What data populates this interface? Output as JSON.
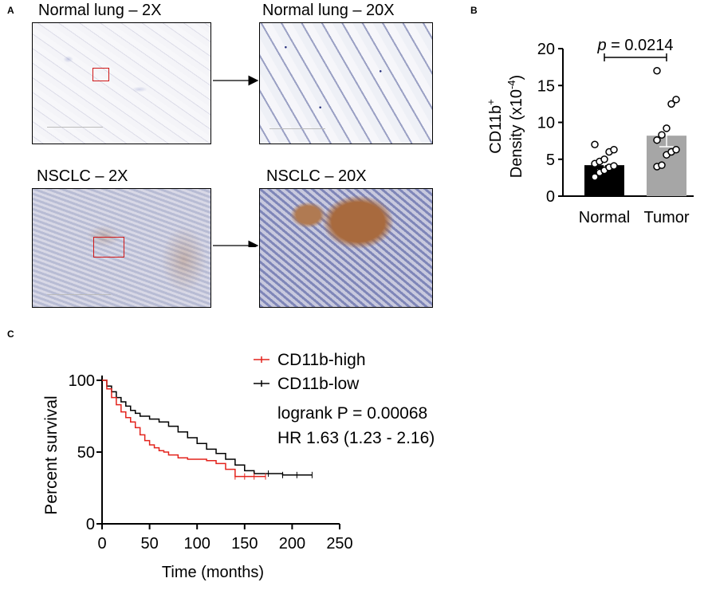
{
  "panel_a": {
    "letter": "A",
    "titles": {
      "normal_2x": "Normal lung – 2X",
      "normal_20x": "Normal lung – 20X",
      "nsclc_2x": "NSCLC – 2X",
      "nsclc_20x": "NSCLC – 20X"
    }
  },
  "panel_b": {
    "letter": "B"
  },
  "panel_c": {
    "letter": "C"
  },
  "colors": {
    "high": "#e3231c",
    "low": "#000000",
    "normal_bar": "#000000",
    "tumor_bar": "#a6a6a6",
    "box": "#d01818"
  },
  "chart_data": [
    {
      "type": "bar",
      "id": "B",
      "categories": [
        "Normal",
        "Tumor"
      ],
      "values": [
        4.2,
        8.2
      ],
      "sem": [
        0.6,
        1.5
      ],
      "points": [
        [
          2.6,
          3.2,
          3.5,
          3.9,
          4.1,
          4.4,
          4.7,
          5.0,
          6.0,
          6.3,
          7.0
        ],
        [
          4.0,
          4.2,
          5.6,
          6.0,
          6.3,
          7.6,
          8.3,
          9.2,
          12.5,
          13.1,
          17.0
        ]
      ],
      "ylabel_line1": "CD11b",
      "ylabel_sup1": "+",
      "ylabel_line2": "Density (x10",
      "ylabel_sup2": "-4",
      "ylabel_close": ")",
      "ylim": [
        0,
        20
      ],
      "yticks": [
        "0",
        "5",
        "10",
        "15",
        "20"
      ],
      "yticks_values": [
        0,
        5,
        10,
        15,
        20
      ],
      "annotation_p": "p",
      "annotation_rest": " = 0.0214"
    },
    {
      "type": "line",
      "id": "C",
      "title": "",
      "xlabel": "Time (months)",
      "ylabel": "Percent survival",
      "xlim": [
        0,
        250
      ],
      "ylim": [
        0,
        100
      ],
      "xticks": [
        "0",
        "50",
        "100",
        "150",
        "200",
        "250"
      ],
      "xticks_values": [
        0,
        50,
        100,
        150,
        200,
        250
      ],
      "yticks": [
        "0",
        "50",
        "100"
      ],
      "yticks_values": [
        0,
        50,
        100
      ],
      "series": [
        {
          "name": "CD11b-high",
          "x": [
            0,
            5,
            10,
            15,
            20,
            25,
            30,
            35,
            40,
            45,
            50,
            55,
            60,
            65,
            70,
            80,
            90,
            100,
            110,
            120,
            130,
            140,
            150,
            160,
            172
          ],
          "y": [
            100,
            94,
            88,
            83,
            78,
            74,
            71,
            67,
            62,
            58,
            55,
            53,
            51,
            50,
            48,
            46,
            45,
            45,
            44,
            42,
            38,
            33,
            33,
            33,
            33
          ]
        },
        {
          "name": "CD11b-low",
          "x": [
            0,
            5,
            10,
            15,
            20,
            25,
            30,
            35,
            40,
            50,
            60,
            70,
            80,
            90,
            100,
            110,
            120,
            130,
            140,
            150,
            160,
            175,
            190,
            205,
            221
          ],
          "y": [
            100,
            96,
            92,
            88,
            85,
            82,
            79,
            77,
            75,
            73,
            71,
            68,
            64,
            60,
            56,
            52,
            49,
            45,
            41,
            37,
            35,
            35,
            34,
            34,
            34
          ]
        }
      ],
      "legend": [
        "CD11b-high",
        "CD11b-low"
      ],
      "annotations": [
        "logrank P = 0.00068",
        "HR 1.63 (1.23 - 2.16)"
      ]
    }
  ]
}
